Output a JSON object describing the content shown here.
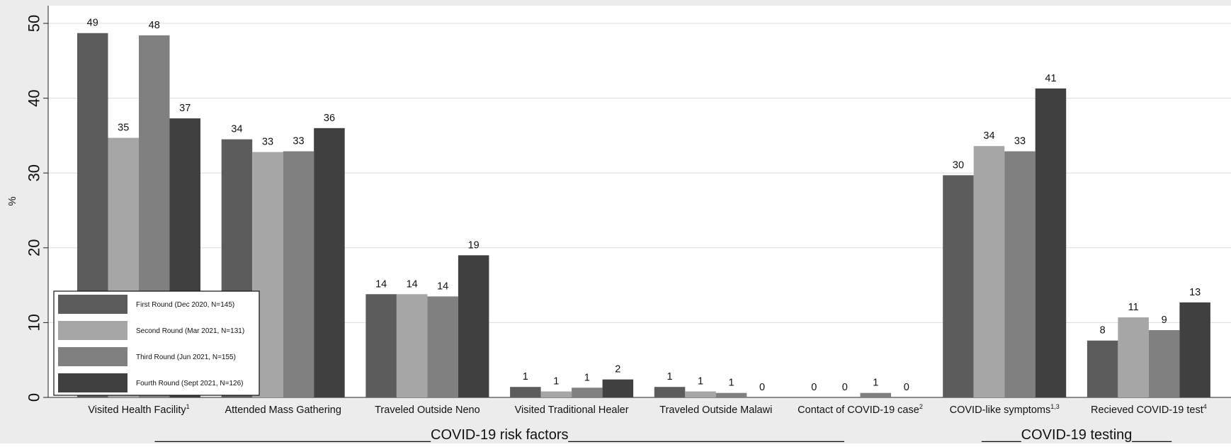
{
  "chart_data": {
    "type": "bar",
    "ylabel": "%",
    "ylim": [
      0,
      52
    ],
    "yticks": [
      0,
      10,
      20,
      30,
      40,
      50
    ],
    "grid": true,
    "legend_position": "bottom-left",
    "categories": [
      "Visited Health Facility",
      "Attended Mass Gathering",
      "Traveled Outside Neno",
      "Visited Traditional Healer",
      "Traveled Outside Malawi",
      "Contact of COVID-19 case",
      "COVID-like symptoms",
      "Recieved COVID-19 test"
    ],
    "category_superscripts": [
      "1",
      "",
      "",
      "",
      "",
      "2",
      "1,3",
      "4"
    ],
    "series": [
      {
        "name": "First Round (Dec 2020, N=145)",
        "color": "#5c5c5c",
        "values": [
          48.7,
          34.5,
          13.8,
          1.4,
          1.4,
          0.0,
          29.7,
          7.6
        ],
        "labels": [
          "49",
          "34",
          "14",
          "1",
          "1",
          "0",
          "30",
          "8"
        ]
      },
      {
        "name": "Second Round (Mar 2021, N=131)",
        "color": "#a6a6a6",
        "values": [
          34.7,
          32.8,
          13.8,
          0.8,
          0.8,
          0.0,
          33.6,
          10.7
        ],
        "labels": [
          "35",
          "33",
          "14",
          "1",
          "1",
          "0",
          "34",
          "11"
        ]
      },
      {
        "name": "Third Round (Jun 2021, N=155)",
        "color": "#808080",
        "values": [
          48.4,
          32.9,
          13.5,
          1.3,
          0.6,
          0.6,
          32.9,
          9.0
        ],
        "labels": [
          "48",
          "33",
          "14",
          "1",
          "1",
          "1",
          "33",
          "9"
        ]
      },
      {
        "name": "Fourth Round (Sept 2021, N=126)",
        "color": "#404040",
        "values": [
          37.3,
          36.0,
          19.0,
          2.4,
          0.0,
          0.0,
          41.3,
          12.7
        ],
        "labels": [
          "37",
          "36",
          "19",
          "2",
          "0",
          "0",
          "41",
          "13"
        ]
      }
    ],
    "group_labels": [
      {
        "text": "___________________________________COVID-19 risk factors___________________________________",
        "categories": [
          0,
          5
        ]
      },
      {
        "text": "_____COVID-19 testing_____",
        "categories": [
          6,
          7
        ]
      }
    ]
  }
}
